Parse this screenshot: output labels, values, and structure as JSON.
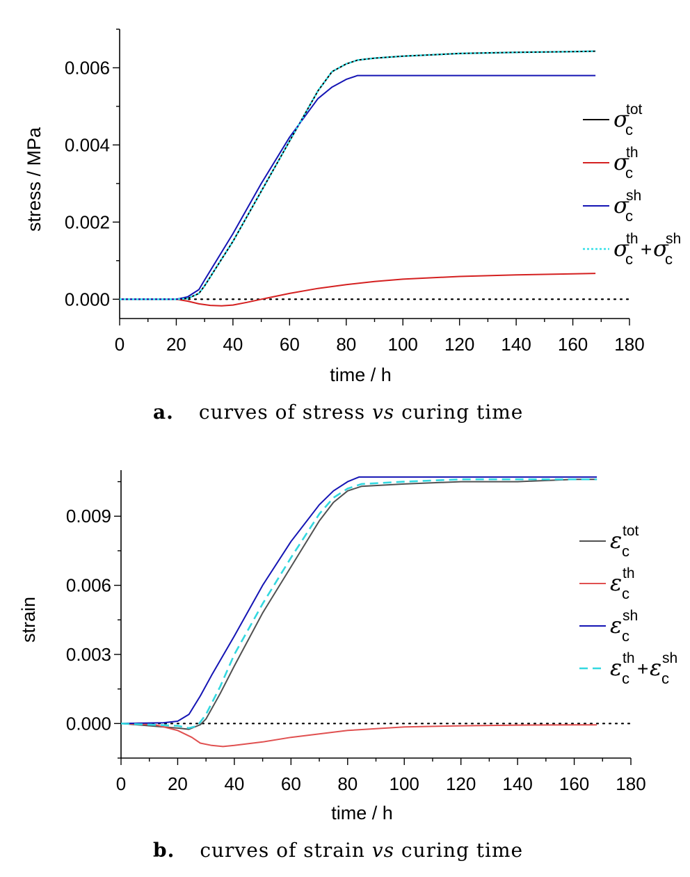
{
  "chart_data": [
    {
      "type": "line",
      "panel": "a",
      "caption_tag": "a.",
      "caption_before": "curves of stress ",
      "caption_italic": "vs",
      "caption_after": " curing time",
      "xlabel": "time / h",
      "ylabel": "stress / MPa",
      "xlim": [
        0,
        180
      ],
      "ylim": [
        -0.0005,
        0.007
      ],
      "xticks": [
        0,
        20,
        40,
        60,
        80,
        100,
        120,
        140,
        160,
        180
      ],
      "yticks": [
        "0.000",
        "0.002",
        "0.004",
        "0.006"
      ],
      "ytick_values": [
        0,
        0.002,
        0.004,
        0.006
      ],
      "legend_position": "right",
      "zero_line": "dotted",
      "series": [
        {
          "sym": "σ",
          "sub": "c",
          "sup": "tot",
          "color": "#000000",
          "dash": "solid",
          "x": [
            0,
            20,
            24,
            28,
            30,
            40,
            50,
            60,
            70,
            75,
            80,
            84,
            90,
            100,
            120,
            140,
            160,
            168
          ],
          "y": [
            0,
            0,
            2e-05,
            0.00015,
            0.00035,
            0.0015,
            0.0028,
            0.0041,
            0.0054,
            0.0059,
            0.0061,
            0.0062,
            0.00625,
            0.0063,
            0.00637,
            0.0064,
            0.00642,
            0.00643
          ]
        },
        {
          "sym": "σ",
          "sub": "c",
          "sup": "th",
          "color": "#d42020",
          "dash": "solid",
          "x": [
            0,
            20,
            24,
            28,
            32,
            36,
            40,
            45,
            50,
            60,
            70,
            80,
            90,
            100,
            120,
            140,
            160,
            168
          ],
          "y": [
            0,
            0,
            -5e-05,
            -0.00012,
            -0.00016,
            -0.00017,
            -0.00015,
            -8e-05,
            0,
            0.00015,
            0.00028,
            0.00038,
            0.00046,
            0.00052,
            0.00059,
            0.00063,
            0.00066,
            0.00067
          ]
        },
        {
          "sym": "σ",
          "sub": "c",
          "sup": "sh",
          "color": "#1414b4",
          "dash": "solid",
          "x": [
            0,
            20,
            24,
            28,
            30,
            40,
            50,
            60,
            70,
            75,
            80,
            84,
            90,
            100,
            120,
            140,
            160,
            168
          ],
          "y": [
            0,
            0,
            6e-05,
            0.00025,
            0.0005,
            0.0017,
            0.003,
            0.0042,
            0.0052,
            0.0055,
            0.0057,
            0.0058,
            0.0058,
            0.0058,
            0.0058,
            0.0058,
            0.0058,
            0.0058
          ]
        },
        {
          "sym": "σ",
          "sub": "c",
          "sup": "th",
          "sym2": "σ",
          "sub2": "c",
          "sup2": "sh",
          "color": "#33e0e8",
          "dash": "dotted",
          "x": [
            0,
            20,
            24,
            28,
            30,
            40,
            50,
            60,
            70,
            75,
            80,
            84,
            90,
            100,
            120,
            140,
            160,
            168
          ],
          "y": [
            0,
            0,
            2e-05,
            0.00015,
            0.00035,
            0.0015,
            0.0028,
            0.0041,
            0.0054,
            0.0059,
            0.0061,
            0.0062,
            0.00625,
            0.0063,
            0.00637,
            0.0064,
            0.00642,
            0.00643
          ]
        }
      ]
    },
    {
      "type": "line",
      "panel": "b",
      "caption_tag": "b.",
      "caption_before": "curves of strain ",
      "caption_italic": "vs",
      "caption_after": " curing time",
      "xlabel": "time / h",
      "ylabel": "strain",
      "xlim": [
        0,
        180
      ],
      "ylim": [
        -0.0015,
        0.011
      ],
      "xticks": [
        0,
        20,
        40,
        60,
        80,
        100,
        120,
        140,
        160,
        180
      ],
      "yticks": [
        "0.000",
        "0.003",
        "0.006",
        "0.009"
      ],
      "ytick_values": [
        0,
        0.003,
        0.006,
        0.009
      ],
      "legend_position": "right",
      "zero_line": "dotted",
      "series": [
        {
          "sym": "ε",
          "sub": "c",
          "sup": "tot",
          "color": "#505050",
          "dash": "solid",
          "x": [
            0,
            20,
            24,
            28,
            30,
            35,
            40,
            50,
            60,
            70,
            75,
            80,
            85,
            100,
            120,
            140,
            160,
            168
          ],
          "y": [
            0,
            -0.0002,
            -0.00025,
            -5e-05,
            0.0002,
            0.0013,
            0.0025,
            0.0048,
            0.0068,
            0.0088,
            0.0096,
            0.0101,
            0.0103,
            0.0104,
            0.0105,
            0.0105,
            0.0106,
            0.0106
          ]
        },
        {
          "sym": "ε",
          "sub": "c",
          "sup": "th",
          "color": "#e05050",
          "dash": "solid",
          "x": [
            0,
            12,
            20,
            25,
            28,
            32,
            36,
            40,
            50,
            60,
            80,
            100,
            120,
            140,
            160,
            168
          ],
          "y": [
            0,
            -5e-05,
            -0.0003,
            -0.0006,
            -0.00085,
            -0.00095,
            -0.001,
            -0.00095,
            -0.0008,
            -0.0006,
            -0.0003,
            -0.00015,
            -0.0001,
            -7e-05,
            -6e-05,
            -6e-05
          ]
        },
        {
          "sym": "ε",
          "sub": "c",
          "sup": "sh",
          "color": "#1414b4",
          "dash": "solid",
          "x": [
            0,
            15,
            20,
            24,
            28,
            32,
            40,
            50,
            60,
            70,
            75,
            80,
            84,
            90,
            100,
            120,
            140,
            160,
            168
          ],
          "y": [
            0,
            3e-05,
            0.0001,
            0.0004,
            0.0012,
            0.0021,
            0.0038,
            0.006,
            0.0079,
            0.0095,
            0.0101,
            0.0105,
            0.0107,
            0.0107,
            0.0107,
            0.0107,
            0.0107,
            0.0107,
            0.0107
          ]
        },
        {
          "sym": "ε",
          "sub": "c",
          "sup": "th",
          "sym2": "ε",
          "sub2": "c",
          "sup2": "sh",
          "color": "#33d8e0",
          "dash": "dashed",
          "x": [
            0,
            20,
            24,
            27,
            30,
            35,
            40,
            50,
            60,
            70,
            75,
            80,
            85,
            100,
            120,
            140,
            160,
            168
          ],
          "y": [
            0,
            -0.0001,
            -0.0002,
            -0.0001,
            0.0004,
            0.0016,
            0.003,
            0.0052,
            0.0072,
            0.0091,
            0.0098,
            0.0102,
            0.0104,
            0.0105,
            0.0106,
            0.0106,
            0.0106,
            0.0106
          ]
        }
      ]
    }
  ]
}
